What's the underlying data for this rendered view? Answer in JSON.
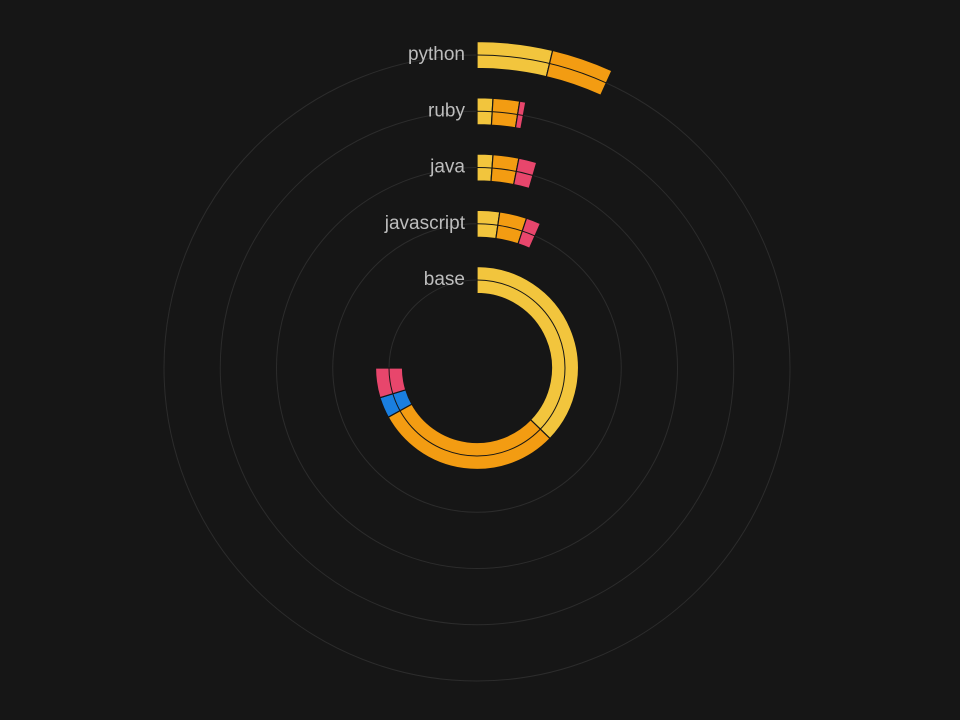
{
  "chart_data": {
    "type": "radial-bar",
    "categories": [
      "python",
      "ruby",
      "java",
      "javascript",
      "base"
    ],
    "ylim": [
      0,
      360
    ],
    "grid": true,
    "series": [
      {
        "color": "#f2c53d",
        "values": [
          13.4,
          3.4,
          4.3,
          8.3,
          134
        ]
      },
      {
        "color": "#f39c12",
        "values": [
          11,
          5.7,
          7,
          10,
          107
        ]
      },
      {
        "color": "#1a7fe0",
        "values": [
          null,
          null,
          null,
          null,
          12
        ]
      },
      {
        "color": "#e8466c",
        "values": [
          null,
          1.3,
          4.9,
          5.4,
          17
        ]
      }
    ]
  }
}
